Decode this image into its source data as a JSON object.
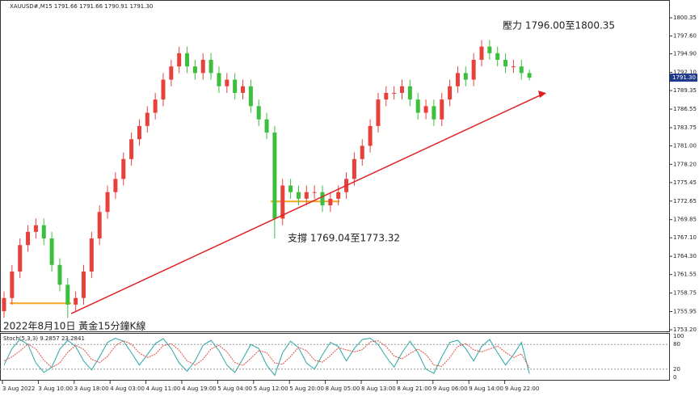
{
  "chart_data": {
    "type": "candlestick",
    "header": "XAUUSD#,M15  1791.66 1791.66 1790.91 1791.30",
    "title": "2022年8月10日 黃金15分鐘K線",
    "annotations": [
      "壓力 1796.00至1800.35",
      "支撐 1769.04至1773.32"
    ],
    "up_color": "#e8413c",
    "down_color": "#3cbf3c",
    "open": [
      1756,
      1758,
      1762,
      1766,
      1768,
      1769,
      1767,
      1763,
      1760,
      1757,
      1758,
      1762,
      1767,
      1771,
      1774,
      1776,
      1779,
      1782,
      1784,
      1786,
      1788,
      1791,
      1793,
      1795,
      1793,
      1792,
      1794,
      1792,
      1790,
      1791,
      1789,
      1790,
      1787,
      1785,
      1783,
      1770,
      1775,
      1774,
      1773,
      1774,
      1774,
      1772,
      1773,
      1774,
      1776,
      1779,
      1781,
      1784,
      1788,
      1789,
      1789,
      1790,
      1788,
      1786,
      1787,
      1785,
      1788,
      1790,
      1792,
      1791,
      1794,
      1796,
      1795,
      1794,
      1793,
      1793,
      1792
    ],
    "high": [
      1759,
      1763,
      1767,
      1769,
      1770,
      1770,
      1768,
      1764,
      1761,
      1759,
      1763,
      1768,
      1772,
      1775,
      1777,
      1780,
      1783,
      1785,
      1787,
      1789,
      1792,
      1794,
      1796,
      1796,
      1794,
      1795,
      1795,
      1793,
      1792,
      1792,
      1791,
      1791,
      1788,
      1786,
      1784,
      1776,
      1776,
      1775,
      1775,
      1775,
      1775,
      1774,
      1775,
      1777,
      1780,
      1782,
      1785,
      1789,
      1790,
      1790,
      1791,
      1791,
      1789,
      1788,
      1788,
      1789,
      1791,
      1793,
      1793,
      1795,
      1797,
      1797,
      1796,
      1795,
      1794,
      1794,
      1792.5
    ],
    "low": [
      1755,
      1757,
      1761,
      1765,
      1767,
      1766,
      1762,
      1759,
      1755,
      1756,
      1757,
      1761,
      1766,
      1770,
      1773,
      1775,
      1778,
      1781,
      1783,
      1785,
      1787,
      1790,
      1792,
      1792,
      1791,
      1791,
      1791,
      1789,
      1789,
      1788,
      1788,
      1786,
      1784,
      1782,
      1767,
      1769,
      1773,
      1772,
      1772,
      1773,
      1771,
      1771,
      1772,
      1773,
      1775,
      1778,
      1780,
      1783,
      1787,
      1788,
      1788,
      1787,
      1785,
      1785,
      1784,
      1784,
      1787,
      1789,
      1790,
      1790,
      1793,
      1794,
      1793,
      1792,
      1792,
      1791,
      1790.9
    ],
    "close": [
      1758,
      1762,
      1766,
      1768,
      1769,
      1767,
      1763,
      1760,
      1757,
      1758,
      1762,
      1767,
      1771,
      1774,
      1776,
      1779,
      1782,
      1784,
      1786,
      1788,
      1791,
      1793,
      1795,
      1793,
      1792,
      1794,
      1792,
      1790,
      1791,
      1789,
      1790,
      1787,
      1785,
      1783,
      1770,
      1775,
      1774,
      1773,
      1774,
      1774,
      1772,
      1773,
      1774,
      1776,
      1779,
      1781,
      1784,
      1788,
      1789,
      1789,
      1790,
      1788,
      1786,
      1787,
      1785,
      1788,
      1790,
      1792,
      1791,
      1794,
      1796,
      1795,
      1794,
      1793,
      1793,
      1792,
      1791.3
    ],
    "ylim": [
      1752.96,
      1803.04
    ],
    "yticks": [
      {
        "value": 1800.35,
        "label": "1800.35"
      },
      {
        "value": 1797.6,
        "label": "1797.60"
      },
      {
        "value": 1794.9,
        "label": "1794.90"
      },
      {
        "value": 1792.1,
        "label": "1792.10"
      },
      1789.35,
      1786.55,
      1783.75,
      {
        "value": 1781,
        "label": "1781.00"
      },
      {
        "value": 1778.2,
        "label": "1778.20"
      },
      1775.45,
      1772.65,
      1769.85,
      {
        "value": 1767.1,
        "label": "1767.10"
      },
      {
        "value": 1764.3,
        "label": "1764.30"
      },
      1761.55,
      1758.75,
      1755.95,
      {
        "value": 1753.2,
        "label": "1753.20"
      }
    ],
    "last_price": {
      "value": 1791.3,
      "label": "1791.30"
    },
    "x_labels": [
      "3 Aug 2022",
      "3 Aug 10:00",
      "3 Aug 18:00",
      "4 Aug 03:00",
      "4 Aug 11:00",
      "4 Aug 19:00",
      "5 Aug 04:00",
      "5 Aug 12:00",
      "5 Aug 20:00",
      "8 Aug 05:00",
      "8 Aug 13:00",
      "8 Aug 21:00",
      "9 Aug 06:00",
      "9 Aug 14:00",
      "9 Aug 22:00"
    ],
    "support_levels": [
      1757.2,
      1772.6
    ],
    "trend_line": [
      1755.64,
      1788.73
    ],
    "stochastic": {
      "label": "Stoch(5,3,3) 9.2857 23.2841",
      "ylim": [
        0,
        100
      ],
      "yticks": [
        100,
        80,
        20,
        0
      ],
      "series": [
        {
          "name": "main",
          "color": "#2aa8a8",
          "values": [
            30,
            70,
            92,
            80,
            35,
            12,
            25,
            68,
            90,
            75,
            40,
            18,
            50,
            85,
            95,
            88,
            60,
            30,
            55,
            82,
            94,
            70,
            35,
            15,
            40,
            78,
            90,
            65,
            30,
            12,
            45,
            80,
            70,
            30,
            5,
            60,
            88,
            72,
            35,
            20,
            55,
            85,
            75,
            40,
            70,
            92,
            95,
            80,
            50,
            25,
            60,
            88,
            60,
            20,
            10,
            50,
            85,
            90,
            70,
            40,
            75,
            92,
            60,
            30,
            55,
            85,
            9.2857
          ]
        },
        {
          "name": "signal",
          "color": "#e0504a",
          "values": [
            40,
            50,
            64,
            81,
            69,
            42,
            24,
            35,
            61,
            78,
            68,
            44,
            36,
            51,
            77,
            89,
            81,
            59,
            48,
            56,
            77,
            82,
            66,
            40,
            30,
            44,
            69,
            78,
            62,
            36,
            29,
            46,
            65,
            60,
            35,
            32,
            51,
            73,
            65,
            42,
            37,
            53,
            72,
            67,
            62,
            67,
            86,
            89,
            75,
            52,
            45,
            58,
            69,
            56,
            30,
            27,
            48,
            75,
            82,
            67,
            62,
            69,
            76,
            61,
            48,
            57,
            23.2841
          ]
        }
      ]
    }
  }
}
